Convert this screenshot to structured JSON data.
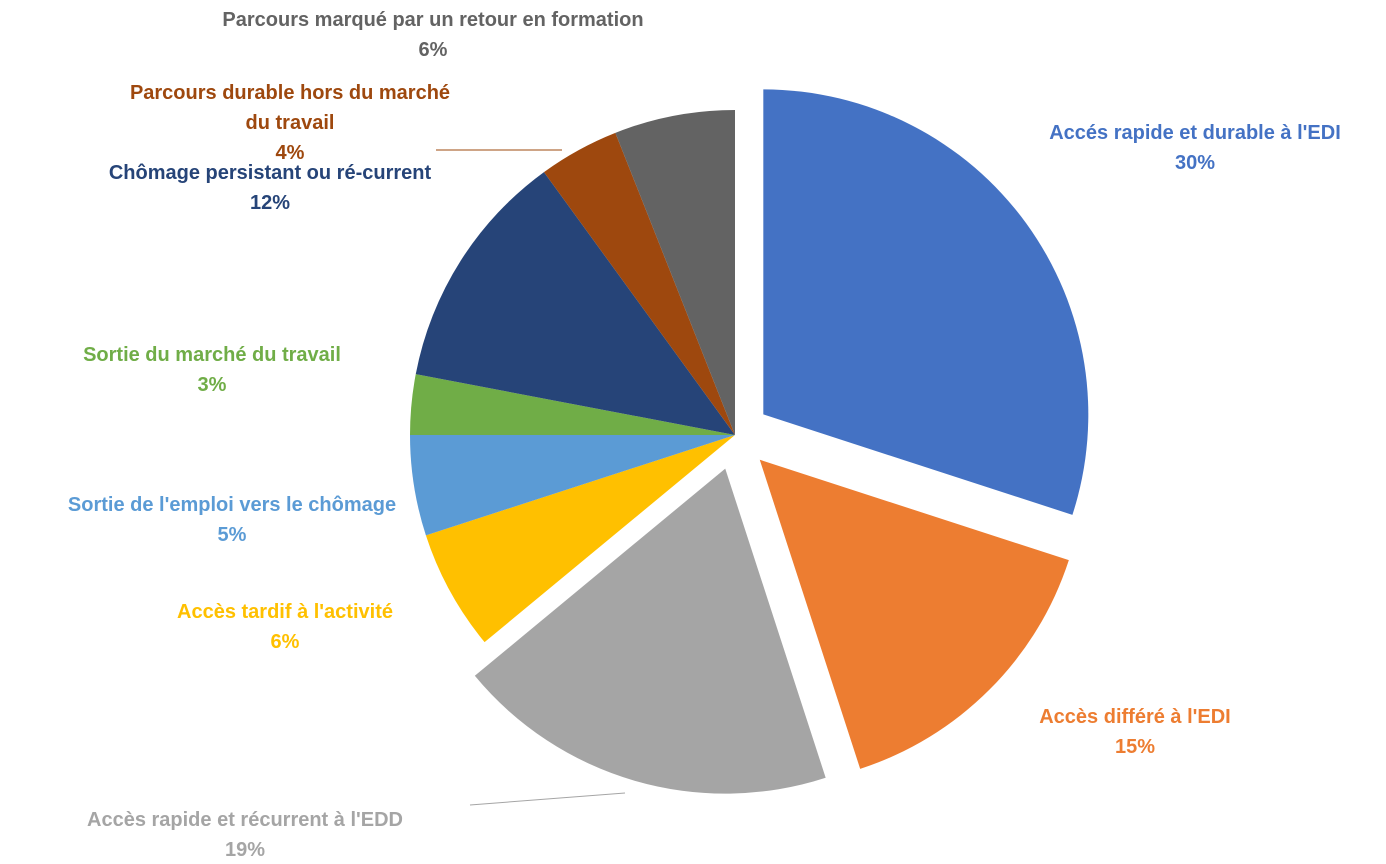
{
  "chart_data": {
    "type": "pie",
    "categories": [
      "Accés rapide et durable à l'EDI",
      "Accès différé à l'EDI",
      "Accès rapide et récurrent à l'EDD",
      "Accès tardif à l'activité",
      "Sortie de l'emploi vers le chômage",
      "Sortie du marché du travail",
      "Chômage persistant ou ré-current",
      "Parcours durable hors du marché du travail",
      "Parcours marqué par un retour en formation"
    ],
    "values": [
      30,
      15,
      19,
      6,
      5,
      3,
      12,
      4,
      6
    ],
    "value_labels": [
      "30%",
      "15%",
      "19%",
      "6%",
      "5%",
      "3%",
      "12%",
      "4%",
      "6%"
    ],
    "colors": [
      "#4472c4",
      "#ed7d31",
      "#a5a5a5",
      "#ffc000",
      "#5b9bd5",
      "#70ad47",
      "#264478",
      "#9e480e",
      "#636363"
    ],
    "exploded": [
      true,
      true,
      true,
      false,
      false,
      false,
      false,
      false,
      false
    ]
  }
}
